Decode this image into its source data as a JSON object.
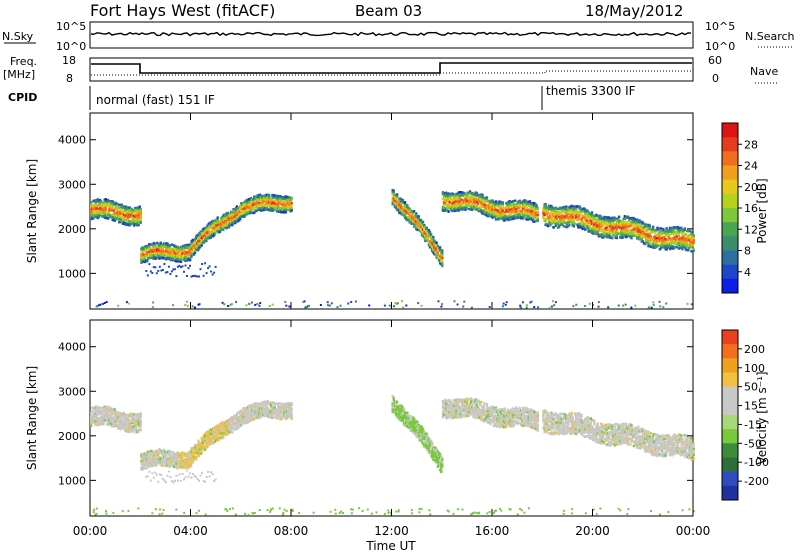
{
  "header": {
    "title": "Fort Hays West (fitACF)",
    "beam": "Beam 03",
    "date": "18/May/2012"
  },
  "top_panels": {
    "nsky_label": "N.Sky",
    "nsky_ticks": [
      "10^5",
      "10^0"
    ],
    "nsearch_label": "N.Search",
    "nsearch_ticks": [
      "10^5",
      "10^0"
    ],
    "freq_label": "Freq.",
    "freq_unit": "[MHz]",
    "freq_ticks": [
      "18",
      "8"
    ],
    "nave_label": "Nave",
    "nave_ticks": [
      "60",
      "0"
    ],
    "cpid_label": "CPID",
    "cpid_segments": [
      "normal (fast) 151 IF",
      "themis 3300 IF"
    ]
  },
  "colors": {
    "power_scale": [
      "#0a1ee6",
      "#1e46c8",
      "#2d6fa0",
      "#3c8c6e",
      "#4aa552",
      "#7dc83c",
      "#b4d21e",
      "#e6c81e",
      "#f0a01e",
      "#f06e1e",
      "#e63c1e",
      "#dc1414"
    ],
    "velocity_scale": [
      "#2030a0",
      "#2e4cc0",
      "#2e6e3c",
      "#3c8c3c",
      "#7ac83c",
      "#a8d878",
      "#c8c8c8",
      "#c8c8c8",
      "#f0c040",
      "#f0a020",
      "#f07020",
      "#e84020",
      "#e01010"
    ]
  },
  "chart_data": [
    {
      "type": "heatmap",
      "panel": "power",
      "ylabel": "Slant Range [km]",
      "yticks": [
        1000,
        2000,
        3000,
        4000
      ],
      "ylim": [
        200,
        4600
      ],
      "xlim": [
        0,
        24
      ],
      "colorbar": {
        "label": "Power [dB]",
        "ticks": [
          4,
          8,
          12,
          16,
          20,
          24,
          28
        ],
        "range": [
          0,
          32
        ]
      },
      "echo_bands": [
        {
          "x": [
            0,
            2
          ],
          "center": [
            2450,
            2350
          ],
          "width": 350
        },
        {
          "x": [
            2,
            4
          ],
          "center": [
            1450,
            1550
          ],
          "width": 300
        },
        {
          "x": [
            4,
            6
          ],
          "center": [
            1600,
            2500
          ],
          "width": 300
        },
        {
          "x": [
            6,
            8
          ],
          "center": [
            2500,
            2650
          ],
          "width": 300
        },
        {
          "x": [
            12,
            14
          ],
          "center": [
            2800,
            1400
          ],
          "width": 300
        },
        {
          "x": [
            14,
            17.8
          ],
          "center": [
            2700,
            2350
          ],
          "width": 350
        },
        {
          "x": [
            18,
            24
          ],
          "center": [
            2400,
            1700
          ],
          "width": 400
        }
      ]
    },
    {
      "type": "heatmap",
      "panel": "velocity",
      "ylabel": "Slant Range [km]",
      "yticks": [
        1000,
        2000,
        3000,
        4000
      ],
      "ylim": [
        200,
        4600
      ],
      "xlim": [
        0,
        24
      ],
      "xlabel": "Time UT",
      "xticks": [
        "00:00",
        "04:00",
        "08:00",
        "12:00",
        "16:00",
        "20:00",
        "00:00"
      ],
      "colorbar": {
        "label": "Velocity [m s⁻¹]",
        "ticks": [
          "200",
          "100",
          "50",
          "15",
          "-15",
          "-50",
          "-100",
          "-200"
        ]
      }
    }
  ]
}
